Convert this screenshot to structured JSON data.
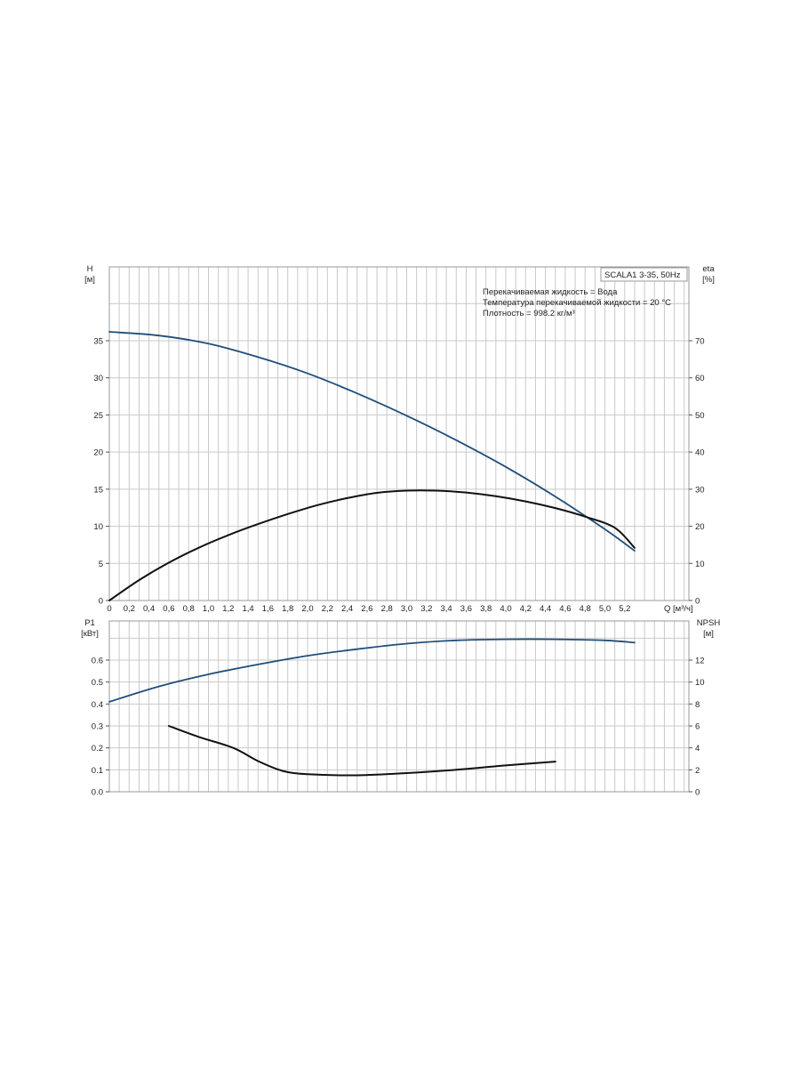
{
  "colors": {
    "blue_curve": "#1f4e7a",
    "black_curve": "#111111",
    "grid": "#c9c9c9",
    "frame": "#9a9a9a",
    "background": "#ffffff"
  },
  "legend_box": {
    "model": "SCALA1 3-35, 50Hz",
    "info_lines": [
      "Перекачиваемая жидкость = Вода",
      "Температура перекачиваемой жидкости = 20 °C",
      "Плотность = 998.2 кг/м³"
    ]
  },
  "chart_data": [
    {
      "type": "line",
      "panel": "top",
      "x_axis": {
        "label": "Q [м³/ч]",
        "range": [
          0,
          5.8
        ],
        "ticks": [
          "0",
          "0,2",
          "0,4",
          "0,6",
          "0,8",
          "1,0",
          "1,2",
          "1,4",
          "1,6",
          "1,8",
          "2,0",
          "2,2",
          "2,4",
          "2,6",
          "2,8",
          "3,0",
          "3,2",
          "3,4",
          "3,6",
          "3,8",
          "4,0",
          "4,2",
          "4,4",
          "4,6",
          "4,8",
          "5,0",
          "5,2"
        ]
      },
      "y_left": {
        "label": "H",
        "unit": "[м]",
        "range": [
          0,
          40
        ],
        "ticks": [
          "0",
          "5",
          "10",
          "15",
          "20",
          "25",
          "30",
          "35"
        ]
      },
      "y_right": {
        "label": "eta",
        "unit": "[%]",
        "range": [
          0,
          80
        ],
        "ticks": [
          "0",
          "10",
          "20",
          "30",
          "40",
          "50",
          "60",
          "70"
        ]
      },
      "grid": true,
      "series": [
        {
          "axis": "left",
          "color": "#1f4e7a",
          "points": [
            [
              0,
              36.2
            ],
            [
              0.5,
              35.7
            ],
            [
              1.0,
              34.6
            ],
            [
              1.5,
              32.8
            ],
            [
              2.0,
              30.6
            ],
            [
              2.5,
              27.9
            ],
            [
              3.0,
              24.9
            ],
            [
              3.5,
              21.6
            ],
            [
              4.0,
              18.0
            ],
            [
              4.5,
              14.0
            ],
            [
              5.0,
              9.6
            ],
            [
              5.3,
              6.7
            ]
          ]
        },
        {
          "axis": "right",
          "color": "#111111",
          "points": [
            [
              0,
              0
            ],
            [
              0.3,
              5.5
            ],
            [
              0.6,
              10.2
            ],
            [
              0.9,
              14.2
            ],
            [
              1.2,
              17.6
            ],
            [
              1.5,
              20.6
            ],
            [
              1.8,
              23.3
            ],
            [
              2.1,
              25.7
            ],
            [
              2.4,
              27.6
            ],
            [
              2.7,
              29.0
            ],
            [
              3.0,
              29.6
            ],
            [
              3.3,
              29.6
            ],
            [
              3.6,
              29.1
            ],
            [
              3.9,
              28.1
            ],
            [
              4.2,
              26.7
            ],
            [
              4.5,
              24.9
            ],
            [
              4.8,
              22.6
            ],
            [
              5.1,
              19.6
            ],
            [
              5.3,
              14.2
            ]
          ]
        }
      ]
    },
    {
      "type": "line",
      "panel": "bottom",
      "x_axis": {
        "range": [
          0,
          5.8
        ]
      },
      "y_left": {
        "label": "P1",
        "unit": "[кВт]",
        "range": [
          0,
          0.7
        ],
        "ticks": [
          "0.0",
          "0.1",
          "0.2",
          "0.3",
          "0.4",
          "0.5",
          "0.6"
        ]
      },
      "y_right": {
        "label": "NPSH",
        "unit": "[м]",
        "range": [
          0,
          14
        ],
        "ticks": [
          "0",
          "2",
          "4",
          "6",
          "8",
          "10",
          "12"
        ]
      },
      "grid": true,
      "series": [
        {
          "axis": "left",
          "color": "#1f4e7a",
          "points": [
            [
              0,
              0.41
            ],
            [
              0.5,
              0.48
            ],
            [
              1.0,
              0.535
            ],
            [
              1.5,
              0.58
            ],
            [
              2.0,
              0.62
            ],
            [
              2.5,
              0.65
            ],
            [
              3.0,
              0.675
            ],
            [
              3.5,
              0.69
            ],
            [
              4.0,
              0.695
            ],
            [
              4.5,
              0.695
            ],
            [
              5.0,
              0.69
            ],
            [
              5.3,
              0.68
            ]
          ]
        },
        {
          "axis": "right",
          "color": "#111111",
          "points": [
            [
              0.6,
              6.0
            ],
            [
              0.9,
              5.0
            ],
            [
              1.25,
              4.0
            ],
            [
              1.5,
              2.8
            ],
            [
              1.75,
              1.9
            ],
            [
              2.0,
              1.6
            ],
            [
              2.5,
              1.5
            ],
            [
              3.0,
              1.7
            ],
            [
              3.5,
              2.0
            ],
            [
              4.0,
              2.4
            ],
            [
              4.5,
              2.75
            ]
          ]
        }
      ]
    }
  ]
}
